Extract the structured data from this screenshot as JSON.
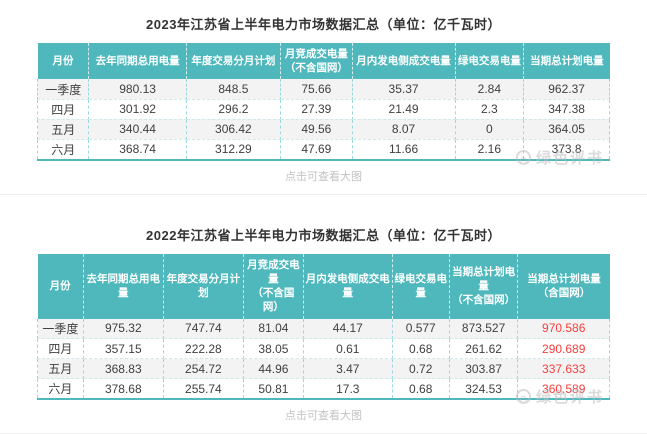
{
  "page": {
    "view_larger_label": "点击可查看大图",
    "watermark_text": "绿色评书"
  },
  "colors": {
    "header_bg": "#4fb8bc",
    "header_text": "#ffffff",
    "row_alt_bg": "#f3f3f3",
    "highlight_red": "#fa3e3e",
    "table_bottom_border": "#4fb8bc"
  },
  "tables": [
    {
      "title": "2023年江苏省上半年电力市场数据汇总（单位：亿千瓦时）",
      "headers": [
        "月份",
        "去年同期总用电量",
        "年度交易分月计划",
        "月竞成交电量\n（不含国网）",
        "月内发电侧成交电量",
        "绿电交易电量",
        "当期总计划电量"
      ],
      "rows": [
        [
          "一季度",
          "980.13",
          "848.5",
          "75.66",
          "35.37",
          "2.84",
          "962.37"
        ],
        [
          "四月",
          "301.92",
          "296.2",
          "27.39",
          "21.49",
          "2.3",
          "347.38"
        ],
        [
          "五月",
          "340.44",
          "306.42",
          "49.56",
          "8.07",
          "0",
          "364.05"
        ],
        [
          "六月",
          "368.74",
          "312.29",
          "47.69",
          "11.66",
          "2.16",
          "373.8"
        ]
      ],
      "highlight_last_column": false
    },
    {
      "title": "2022年江苏省上半年电力市场数据汇总（单位：亿千瓦时）",
      "headers": [
        "月份",
        "去年同期总用电量",
        "年度交易分月计划",
        "月竞成交电量\n（不含国网）",
        "月内发电侧成交电量",
        "绿电交易电量",
        "当期总计划电量\n（不含国网）",
        "当期总计划电量\n（含国网）"
      ],
      "rows": [
        [
          "一季度",
          "975.32",
          "747.74",
          "81.04",
          "44.17",
          "0.577",
          "873.527",
          "970.586"
        ],
        [
          "四月",
          "357.15",
          "222.28",
          "38.05",
          "0.61",
          "0.68",
          "261.62",
          "290.689"
        ],
        [
          "五月",
          "368.83",
          "254.72",
          "44.96",
          "3.47",
          "0.72",
          "303.87",
          "337.633"
        ],
        [
          "六月",
          "378.68",
          "255.74",
          "50.81",
          "17.3",
          "0.68",
          "324.53",
          "360.589"
        ]
      ],
      "highlight_last_column": true
    }
  ]
}
